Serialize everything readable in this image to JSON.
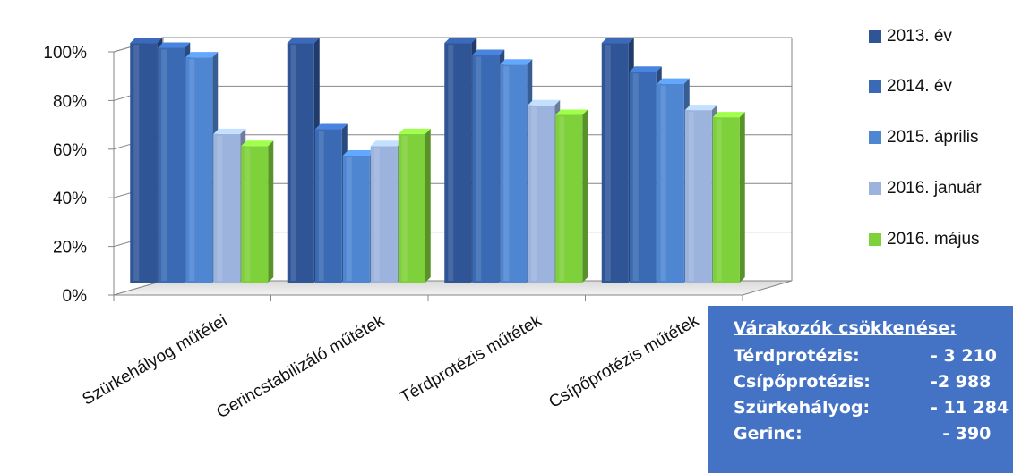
{
  "chart_data": {
    "type": "bar",
    "title": "",
    "xlabel": "",
    "ylabel": "",
    "ylim": [
      0,
      100
    ],
    "y_ticks": [
      "0%",
      "20%",
      "40%",
      "60%",
      "80%",
      "100%"
    ],
    "categories": [
      "Szürkehályog műtétei",
      "Gerincstabilizáló műtétek",
      "Térdprotézis műtétek",
      "Csípőprotézis műtétek"
    ],
    "series": [
      {
        "name": "2013. év",
        "color": "#2f5597",
        "values": [
          100,
          100,
          100,
          100
        ]
      },
      {
        "name": "2014. év",
        "color": "#3a6ab3",
        "values": [
          98,
          64,
          95,
          88
        ]
      },
      {
        "name": "2015. április",
        "color": "#4e86d2",
        "values": [
          94,
          53,
          91,
          83
        ]
      },
      {
        "name": "2016. január",
        "color": "#9cb3de",
        "values": [
          62,
          57,
          74,
          72
        ]
      },
      {
        "name": "2016. május",
        "color": "#7fd13b",
        "values": [
          57,
          62,
          70,
          69
        ]
      }
    ],
    "grid": true,
    "legend_position": "right"
  },
  "infobox": {
    "title": "Várakozók csökkenése:",
    "rows": [
      {
        "label": "Térdprotézis:",
        "value": "- 3 210"
      },
      {
        "label": "Csípőprotézis:",
        "value": "-2 988"
      },
      {
        "label": "Szürkehályog:",
        "value": "- 11 284"
      },
      {
        "label": "Gerinc:",
        "value": "  - 390"
      }
    ]
  }
}
